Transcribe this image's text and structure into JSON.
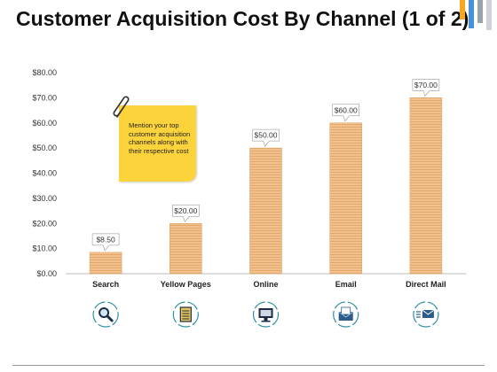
{
  "title": "Customer Acquisition Cost By Channel (1 of 2)",
  "note": {
    "text": "Mention your top customer acquisition channels along with their respective cost"
  },
  "colors": {
    "bar": "#f2c08c",
    "bar_stripe": "#dd9d5e",
    "note": "#fcd33a",
    "icon_ring": "#2c8fa3",
    "deco": [
      "#f5a623",
      "#4a90d9",
      "#9aa3aa",
      "#d0d4d8"
    ]
  },
  "icons": [
    "search-icon",
    "document-icon",
    "computer-monitor-icon",
    "envelope-icon",
    "mail-send-icon"
  ],
  "chart_data": {
    "type": "bar",
    "categories": [
      "Search",
      "Yellow Pages",
      "Online",
      "Email",
      "Direct Mail"
    ],
    "values": [
      8.5,
      20,
      50,
      60,
      70
    ],
    "value_labels": [
      "$8.50",
      "$20.00",
      "$50.00",
      "$60.00",
      "$70.00"
    ],
    "y_ticks": [
      "$0.00",
      "$10.00",
      "$20.00",
      "$30.00",
      "$40.00",
      "$50.00",
      "$60.00",
      "$70.00",
      "$80.00"
    ],
    "ylim": [
      0,
      80
    ],
    "grid": false,
    "title": "",
    "xlabel": "",
    "ylabel": ""
  }
}
